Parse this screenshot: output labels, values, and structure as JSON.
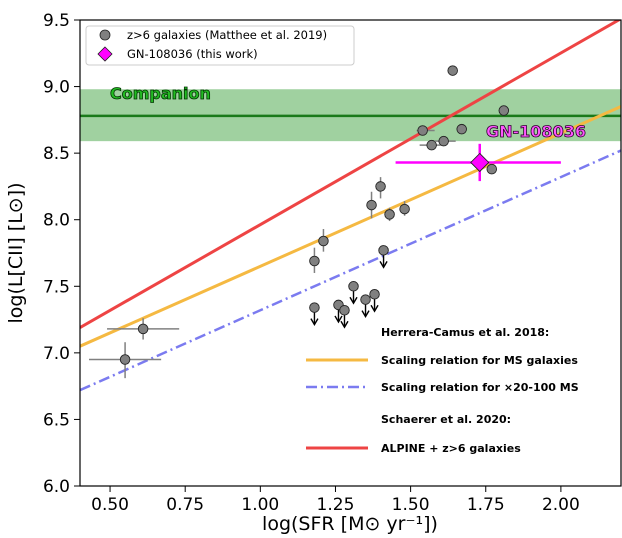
{
  "chart_data": {
    "type": "scatter",
    "xlabel": "log(SFR [M⊙ yr⁻¹])",
    "ylabel": "log(L[CII] [L⊙])",
    "xlim": [
      0.4,
      2.2
    ],
    "ylim": [
      6.0,
      9.5
    ],
    "xticks": [
      "0.50",
      "0.75",
      "1.00",
      "1.25",
      "1.50",
      "1.75",
      "2.00"
    ],
    "xtick_values": [
      0.5,
      0.75,
      1.0,
      1.25,
      1.5,
      1.75,
      2.0
    ],
    "yticks": [
      "6.0",
      "6.5",
      "7.0",
      "7.5",
      "8.0",
      "8.5",
      "9.0",
      "9.5"
    ],
    "ytick_values": [
      6.0,
      6.5,
      7.0,
      7.5,
      8.0,
      8.5,
      9.0,
      9.5
    ],
    "legend_top": [
      {
        "label": "z>6 galaxies (Matthee et al. 2019)",
        "marker": "circle",
        "color": "#808080"
      },
      {
        "label": "GN-108036 (this work)",
        "marker": "diamond",
        "color": "#ff00ff"
      }
    ],
    "legend_lower": {
      "heading1": "Herrera-Camus et al. 2018:",
      "entry1": "Scaling relation for MS galaxies",
      "entry2": "Scaling relation for ×20-100 MS",
      "heading2": "Schaerer et al. 2020:",
      "entry3": "ALPINE + z>6 galaxies"
    },
    "lines": [
      {
        "name": "Scaling relation for MS galaxies",
        "color": "#f5b942",
        "style": "solid",
        "x": [
          0.4,
          2.2
        ],
        "y": [
          7.05,
          8.85
        ]
      },
      {
        "name": "Scaling relation for ×20-100 MS",
        "color": "#7b7bf0",
        "style": "dashdot",
        "x": [
          0.4,
          2.2
        ],
        "y": [
          6.72,
          8.52
        ]
      },
      {
        "name": "ALPINE + z>6 galaxies",
        "color": "#ee4444",
        "style": "solid",
        "x": [
          0.4,
          2.2
        ],
        "y": [
          7.19,
          9.51
        ]
      }
    ],
    "companion": {
      "label": "Companion",
      "y": 8.78,
      "band": [
        8.59,
        8.98
      ],
      "line_color": "#1a7a1a",
      "band_color": "#8fc98f"
    },
    "target": {
      "label": "GN-108036",
      "x": 1.73,
      "y": 8.43,
      "xerr": [
        1.45,
        2.0
      ],
      "yerr": [
        8.29,
        8.57
      ],
      "color": "#ff00ff"
    },
    "points": [
      {
        "x": 0.55,
        "y": 6.95,
        "xerr": [
          0.43,
          0.67
        ],
        "yerr": [
          6.81,
          7.08
        ],
        "upper": false
      },
      {
        "x": 0.61,
        "y": 7.18,
        "xerr": [
          0.49,
          0.73
        ],
        "yerr": [
          7.1,
          7.26
        ],
        "upper": false
      },
      {
        "x": 1.18,
        "y": 7.69,
        "yerr": [
          7.6,
          7.79
        ],
        "upper": false
      },
      {
        "x": 1.21,
        "y": 7.84,
        "yerr": [
          7.76,
          7.93
        ],
        "upper": false
      },
      {
        "x": 1.37,
        "y": 8.11,
        "yerr": [
          8.01,
          8.21
        ],
        "upper": false
      },
      {
        "x": 1.4,
        "y": 8.25,
        "yerr": [
          8.16,
          8.32
        ],
        "upper": false
      },
      {
        "x": 1.43,
        "y": 8.04,
        "yerr": [
          7.99,
          8.09
        ],
        "upper": false
      },
      {
        "x": 1.48,
        "y": 8.08,
        "yerr": [
          8.03,
          8.14
        ],
        "upper": false
      },
      {
        "x": 1.54,
        "y": 8.67,
        "xerr": [
          1.52,
          1.58
        ],
        "upper": false
      },
      {
        "x": 1.57,
        "y": 8.56,
        "xerr": [
          1.53,
          1.6
        ],
        "upper": false
      },
      {
        "x": 1.61,
        "y": 8.59,
        "xerr": [
          1.58,
          1.65
        ],
        "upper": false
      },
      {
        "x": 1.64,
        "y": 9.12,
        "upper": false
      },
      {
        "x": 1.67,
        "y": 8.68,
        "upper": false
      },
      {
        "x": 1.77,
        "y": 8.38,
        "upper": false
      },
      {
        "x": 1.81,
        "y": 8.82,
        "upper": false
      },
      {
        "x": 1.18,
        "y": 7.34,
        "upper": true
      },
      {
        "x": 1.26,
        "y": 7.36,
        "upper": true
      },
      {
        "x": 1.28,
        "y": 7.32,
        "upper": true
      },
      {
        "x": 1.31,
        "y": 7.5,
        "upper": true
      },
      {
        "x": 1.35,
        "y": 7.4,
        "upper": true
      },
      {
        "x": 1.38,
        "y": 7.44,
        "upper": true
      },
      {
        "x": 1.41,
        "y": 7.77,
        "upper": true
      }
    ]
  }
}
